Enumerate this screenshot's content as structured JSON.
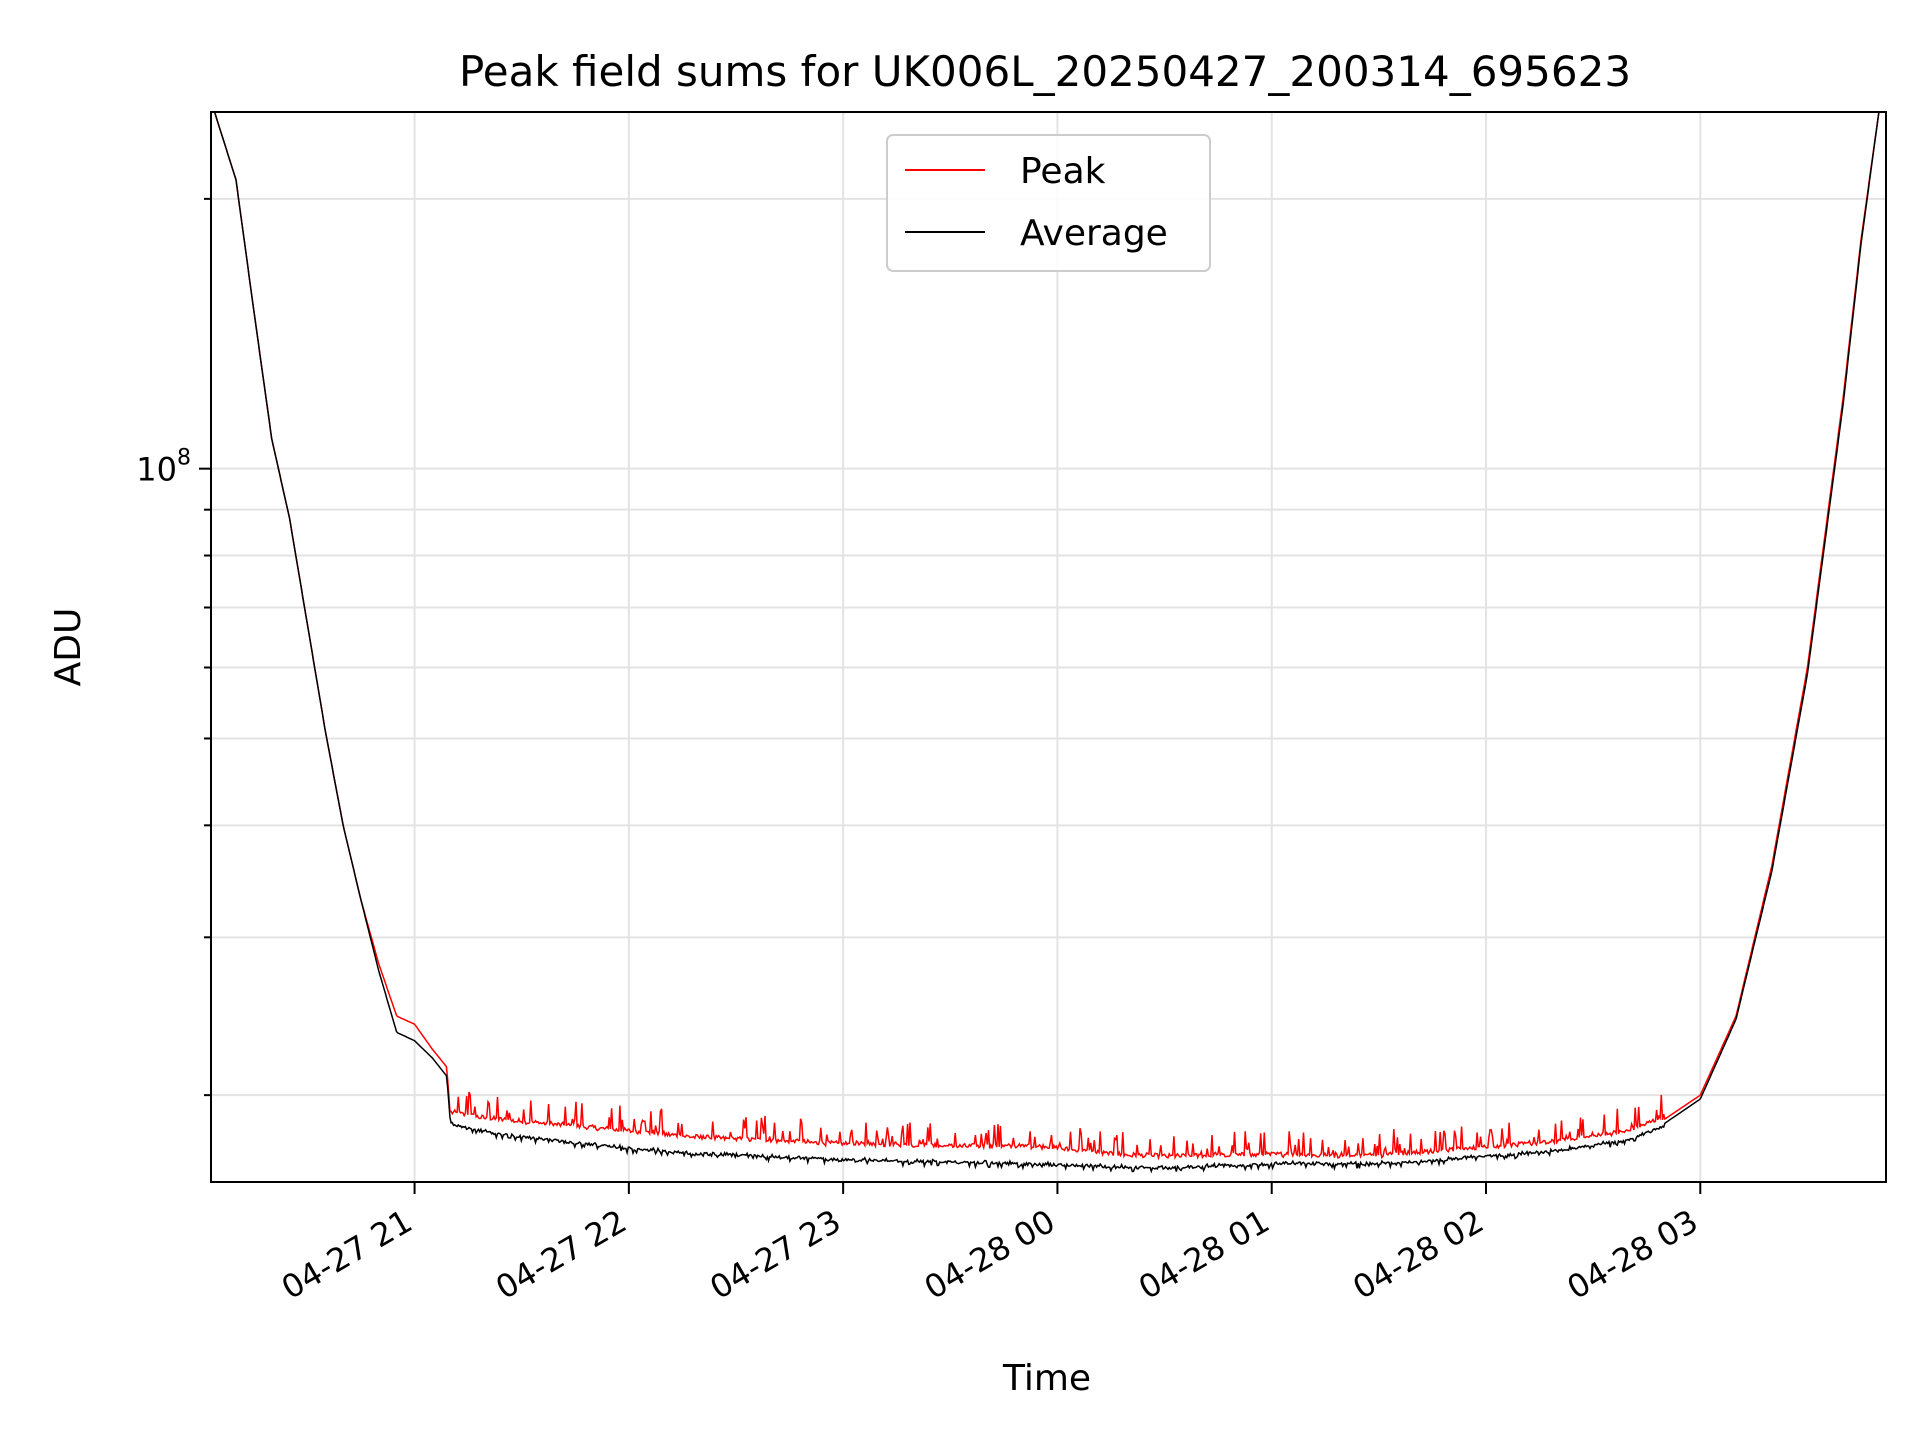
{
  "chart_data": {
    "type": "line",
    "title": "Peak field sums for UK006L_20250427_200314_695623",
    "xlabel": "Time",
    "ylabel": "ADU",
    "x_axis": {
      "type": "time",
      "range": [
        "2025-04-27 20:03",
        "2025-04-28 03:52"
      ],
      "ticks": [
        "2025-04-27 21:00",
        "2025-04-27 22:00",
        "2025-04-27 23:00",
        "2025-04-28 00:00",
        "2025-04-28 01:00",
        "2025-04-28 02:00",
        "2025-04-28 03:00"
      ],
      "tick_labels": [
        "04-27 21",
        "04-27 22",
        "04-27 23",
        "04-28 00",
        "04-28 01",
        "04-28 02",
        "04-28 03"
      ],
      "tick_label_rotation": 30
    },
    "y_axis": {
      "scale": "log",
      "ylim": [
        16000000,
        250000000
      ],
      "major_tick_labels": [
        {
          "value": 100000000,
          "label": "10",
          "exponent": "8"
        }
      ]
    },
    "grid": true,
    "legend": {
      "placement": "top-center",
      "entries": [
        "Peak",
        "Average"
      ]
    },
    "colors": {
      "Peak": "#ff0000",
      "Average": "#000000"
    },
    "series": [
      {
        "name": "Peak",
        "points": [
          [
            "2025-04-27 20:04",
            250000000
          ],
          [
            "2025-04-27 20:10",
            210000000
          ],
          [
            "2025-04-27 20:15",
            150000000
          ],
          [
            "2025-04-27 20:20",
            108000000
          ],
          [
            "2025-04-27 20:25",
            88000000
          ],
          [
            "2025-04-27 20:30",
            67000000
          ],
          [
            "2025-04-27 20:35",
            51000000
          ],
          [
            "2025-04-27 20:40",
            40000000
          ],
          [
            "2025-04-27 20:45",
            33000000
          ],
          [
            "2025-04-27 20:50",
            28000000
          ],
          [
            "2025-04-27 20:55",
            24500000
          ],
          [
            "2025-04-27 21:00",
            24000000
          ],
          [
            "2025-04-27 21:05",
            22500000
          ],
          [
            "2025-04-27 21:09",
            21500000
          ],
          [
            "2025-04-27 21:10",
            19000000
          ],
          [
            "2025-04-27 21:20",
            18700000
          ],
          [
            "2025-04-27 21:40",
            18400000
          ],
          [
            "2025-04-27 22:00",
            18100000
          ],
          [
            "2025-04-27 22:20",
            17800000
          ],
          [
            "2025-04-27 22:40",
            17650000
          ],
          [
            "2025-04-27 23:00",
            17500000
          ],
          [
            "2025-04-27 23:30",
            17400000
          ],
          [
            "2025-04-27 23:55",
            17400000
          ],
          [
            "2025-04-28 00:15",
            17050000
          ],
          [
            "2025-04-28 00:30",
            16950000
          ],
          [
            "2025-04-28 00:50",
            17000000
          ],
          [
            "2025-04-28 01:05",
            17050000
          ],
          [
            "2025-04-28 01:20",
            16950000
          ],
          [
            "2025-04-28 01:40",
            17100000
          ],
          [
            "2025-04-28 02:00",
            17350000
          ],
          [
            "2025-04-28 02:20",
            17600000
          ],
          [
            "2025-04-28 02:40",
            18100000
          ],
          [
            "2025-04-28 02:50",
            18800000
          ],
          [
            "2025-04-28 03:00",
            20000000
          ],
          [
            "2025-04-28 03:10",
            24500000
          ],
          [
            "2025-04-28 03:20",
            36000000
          ],
          [
            "2025-04-28 03:30",
            60000000
          ],
          [
            "2025-04-28 03:40",
            120000000
          ],
          [
            "2025-04-28 03:45",
            180000000
          ],
          [
            "2025-04-28 03:50",
            250000000
          ]
        ]
      },
      {
        "name": "Average",
        "points": [
          [
            "2025-04-27 20:04",
            250000000
          ],
          [
            "2025-04-27 20:10",
            210000000
          ],
          [
            "2025-04-27 20:15",
            150000000
          ],
          [
            "2025-04-27 20:20",
            108000000
          ],
          [
            "2025-04-27 20:25",
            88000000
          ],
          [
            "2025-04-27 20:30",
            67000000
          ],
          [
            "2025-04-27 20:35",
            51000000
          ],
          [
            "2025-04-27 20:40",
            40000000
          ],
          [
            "2025-04-27 20:45",
            33000000
          ],
          [
            "2025-04-27 20:50",
            27500000
          ],
          [
            "2025-04-27 20:55",
            23500000
          ],
          [
            "2025-04-27 21:00",
            23000000
          ],
          [
            "2025-04-27 21:05",
            22000000
          ],
          [
            "2025-04-27 21:09",
            21000000
          ],
          [
            "2025-04-27 21:10",
            18700000
          ],
          [
            "2025-04-27 21:20",
            18300000
          ],
          [
            "2025-04-27 21:40",
            17900000
          ],
          [
            "2025-04-27 22:00",
            17550000
          ],
          [
            "2025-04-27 22:20",
            17300000
          ],
          [
            "2025-04-27 22:40",
            17200000
          ],
          [
            "2025-04-27 23:00",
            17050000
          ],
          [
            "2025-04-27 23:30",
            16950000
          ],
          [
            "2025-04-27 23:55",
            16850000
          ],
          [
            "2025-04-28 00:15",
            16750000
          ],
          [
            "2025-04-28 00:30",
            16700000
          ],
          [
            "2025-04-28 00:50",
            16800000
          ],
          [
            "2025-04-28 01:05",
            16900000
          ],
          [
            "2025-04-28 01:20",
            16850000
          ],
          [
            "2025-04-28 01:40",
            16950000
          ],
          [
            "2025-04-28 02:00",
            17200000
          ],
          [
            "2025-04-28 02:20",
            17450000
          ],
          [
            "2025-04-28 02:40",
            17950000
          ],
          [
            "2025-04-28 02:50",
            18600000
          ],
          [
            "2025-04-28 03:00",
            19800000
          ],
          [
            "2025-04-28 03:10",
            24300000
          ],
          [
            "2025-04-28 03:20",
            35500000
          ],
          [
            "2025-04-28 03:30",
            59000000
          ],
          [
            "2025-04-28 03:40",
            118000000
          ],
          [
            "2025-04-28 03:45",
            178000000
          ],
          [
            "2025-04-28 03:50",
            250000000
          ]
        ]
      }
    ]
  }
}
